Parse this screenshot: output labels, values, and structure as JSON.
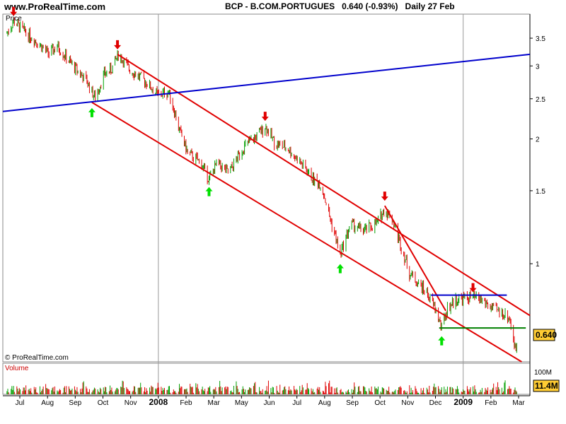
{
  "header": {
    "site": "www.ProRealTime.com",
    "ticker": "BCP - B.COM.PORTUGUES",
    "last": "0.640 (-0.93%)",
    "period": "Daily 27 Feb"
  },
  "price_panel": {
    "label": "Price",
    "copyright": "© ProRealTime.com",
    "last_value": "0.640"
  },
  "volume_panel": {
    "label": "Volume",
    "scale_label": "100M",
    "last_value": "11.4M"
  },
  "colors": {
    "channel": "#e00000",
    "horizontal_blue": "#0000cc",
    "support_green": "#008000",
    "arrow_down": "#e00000",
    "arrow_up": "#00e000",
    "candle_up": "#00a000",
    "candle_down": "#e00000",
    "value_tag_bg": "#ffcc33"
  },
  "chart_data": {
    "type": "line",
    "title": "BCP - B.COM.PORTUGUES",
    "ylabel": "Price",
    "y_scale": "log",
    "ylim": [
      0.58,
      4.0
    ],
    "y_ticks": [
      3.5,
      3,
      2.5,
      2,
      1.5,
      1
    ],
    "y_tick_labels": [
      "3.5",
      "3",
      "2.5",
      "2",
      "1.5",
      "1"
    ],
    "x_tick_labels": [
      "Jul",
      "Aug",
      "Sep",
      "Oct",
      "Nov",
      "2008",
      "Feb",
      "Mar",
      "May",
      "Jun",
      "Jul",
      "Aug",
      "Sep",
      "Oct",
      "Nov",
      "Dec",
      "2009",
      "Feb",
      "Mar"
    ],
    "x_start": "2007-06-15",
    "x_end": "2009-03-15",
    "series": [
      {
        "values": [
          [
            "2007-06-20",
            3.6
          ],
          [
            "2007-06-28",
            3.85
          ],
          [
            "2007-07-10",
            3.65
          ],
          [
            "2007-07-25",
            3.45
          ],
          [
            "2007-08-10",
            3.2
          ],
          [
            "2007-08-20",
            3.35
          ],
          [
            "2007-09-05",
            3.05
          ],
          [
            "2007-09-25",
            2.75
          ],
          [
            "2007-10-05",
            2.5
          ],
          [
            "2007-10-15",
            2.85
          ],
          [
            "2007-10-25",
            2.95
          ],
          [
            "2007-11-02",
            3.2
          ],
          [
            "2007-11-15",
            2.95
          ],
          [
            "2007-12-05",
            2.75
          ],
          [
            "2007-12-20",
            2.55
          ],
          [
            "2008-01-02",
            2.6
          ],
          [
            "2008-01-15",
            2.1
          ],
          [
            "2008-01-25",
            1.85
          ],
          [
            "2008-02-10",
            1.75
          ],
          [
            "2008-02-20",
            1.6
          ],
          [
            "2008-03-01",
            1.75
          ],
          [
            "2008-03-15",
            1.65
          ],
          [
            "2008-04-01",
            1.9
          ],
          [
            "2008-04-20",
            2.05
          ],
          [
            "2008-04-28",
            2.15
          ],
          [
            "2008-05-10",
            1.95
          ],
          [
            "2008-05-25",
            1.9
          ],
          [
            "2008-06-10",
            1.75
          ],
          [
            "2008-06-25",
            1.6
          ],
          [
            "2008-07-05",
            1.55
          ],
          [
            "2008-07-15",
            1.3
          ],
          [
            "2008-07-28",
            1.05
          ],
          [
            "2008-08-10",
            1.25
          ],
          [
            "2008-08-25",
            1.2
          ],
          [
            "2008-09-10",
            1.25
          ],
          [
            "2008-09-20",
            1.35
          ],
          [
            "2008-09-28",
            1.3
          ],
          [
            "2008-10-10",
            1.1
          ],
          [
            "2008-10-20",
            0.95
          ],
          [
            "2008-10-30",
            0.9
          ],
          [
            "2008-11-10",
            0.85
          ],
          [
            "2008-11-20",
            0.78
          ],
          [
            "2008-11-28",
            0.7
          ],
          [
            "2008-12-05",
            0.78
          ],
          [
            "2008-12-15",
            0.82
          ],
          [
            "2009-01-05",
            0.83
          ],
          [
            "2009-01-15",
            0.82
          ],
          [
            "2009-01-28",
            0.78
          ],
          [
            "2009-02-10",
            0.76
          ],
          [
            "2009-02-18",
            0.74
          ],
          [
            "2009-02-22",
            0.68
          ],
          [
            "2009-02-25",
            0.62
          ],
          [
            "2009-02-27",
            0.64
          ]
        ]
      }
    ],
    "trendlines": [
      {
        "color": "red",
        "from": [
          "2007-11-01",
          3.2
        ],
        "to": [
          "2009-03-15",
          0.75
        ]
      },
      {
        "color": "red",
        "from": [
          "2007-10-01",
          2.45
        ],
        "to": [
          "2009-03-05",
          0.58
        ]
      },
      {
        "color": "red",
        "from": [
          "2008-09-20",
          1.38
        ],
        "to": [
          "2008-12-03",
          0.77
        ]
      },
      {
        "color": "blue",
        "from": [
          "2007-06-15",
          2.33
        ],
        "to": [
          "2009-03-15",
          3.2
        ]
      },
      {
        "color": "blue",
        "from": [
          "2008-11-15",
          0.84
        ],
        "to": [
          "2009-02-15",
          0.84
        ]
      },
      {
        "color": "green",
        "from": [
          "2008-11-25",
          0.7
        ],
        "to": [
          "2009-03-10",
          0.7
        ]
      }
    ],
    "down_arrows": [
      [
        "2007-06-28",
        3.85
      ],
      [
        "2007-11-01",
        3.2
      ],
      [
        "2008-04-28",
        2.15
      ],
      [
        "2008-09-20",
        1.38
      ],
      [
        "2009-01-05",
        0.83
      ]
    ],
    "up_arrows": [
      [
        "2007-10-01",
        2.45
      ],
      [
        "2008-02-20",
        1.58
      ],
      [
        "2008-07-28",
        1.03
      ],
      [
        "2008-11-28",
        0.69
      ]
    ],
    "volume": {
      "ylabel": "Volume",
      "unit": "M",
      "y_ticks": [
        100
      ],
      "last": 11.4
    }
  }
}
